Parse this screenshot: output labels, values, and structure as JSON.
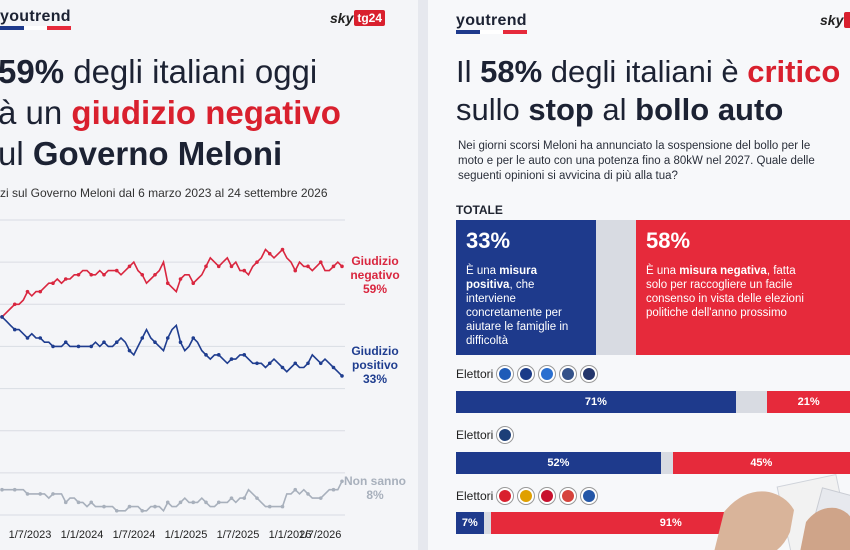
{
  "left": {
    "logo": "youtrend",
    "broadcaster": {
      "sky": "sky",
      "tg": "tg24"
    },
    "headline": {
      "l1_bold": "59%",
      "l1_rest": " degli italiani oggi",
      "l2_a": "à un ",
      "l2_red": "giudizio negativo",
      "l3_a": "ul ",
      "l3_bold": "Governo Meloni"
    },
    "subtitle": "zi sul Governo Meloni dal 6 marzo 2023 al 24 settembre 2026"
  },
  "chart_data": {
    "type": "line",
    "title": "",
    "xlabel": "",
    "ylabel": "",
    "x_ticks": [
      "1/7/2023",
      "1/1/2024",
      "1/7/2024",
      "1/1/2025",
      "1/7/2025",
      "1/1/2026",
      "1/7/2026"
    ],
    "series": [
      {
        "name_lines": [
          "Giudizio",
          "negativo"
        ],
        "final_label": "59%",
        "color": "#d9263f",
        "values": [
          47,
          48,
          49,
          50,
          50,
          51,
          53,
          52,
          53,
          53,
          54,
          55,
          55,
          56,
          55,
          56,
          56,
          57,
          57,
          58,
          58,
          57,
          57,
          58,
          57,
          58,
          58,
          58,
          57,
          58,
          59,
          60,
          58,
          57,
          55,
          56,
          57,
          58,
          60,
          55,
          54,
          53,
          56,
          57,
          57,
          55,
          56,
          57,
          59,
          61,
          60,
          59,
          60,
          61,
          59,
          60,
          58,
          58,
          57,
          59,
          60,
          61,
          63,
          62,
          61,
          62,
          63,
          61,
          60,
          58,
          60,
          59,
          59,
          58,
          59,
          60,
          58,
          58,
          59,
          60,
          59
        ]
      },
      {
        "name_lines": [
          "Giudizio",
          "positivo"
        ],
        "final_label": "33%",
        "color": "#1f3d8f",
        "values": [
          47,
          46,
          45,
          44,
          44,
          43,
          42,
          43,
          42,
          42,
          41,
          41,
          40,
          40,
          40,
          41,
          40,
          40,
          40,
          40,
          40,
          40,
          41,
          40,
          41,
          40,
          40,
          41,
          42,
          41,
          39,
          38,
          40,
          42,
          44,
          42,
          41,
          40,
          39,
          42,
          44,
          45,
          41,
          39,
          40,
          42,
          41,
          39,
          38,
          37,
          38,
          38,
          37,
          36,
          37,
          37,
          38,
          38,
          37,
          36,
          36,
          36,
          35,
          36,
          37,
          36,
          35,
          34,
          35,
          36,
          35,
          35,
          36,
          38,
          37,
          36,
          37,
          36,
          35,
          34,
          33
        ]
      },
      {
        "name_lines": [
          "Non sanno"
        ],
        "final_label": "8%",
        "color": "#a8b0bc",
        "values": [
          6,
          6,
          6,
          6,
          6,
          6,
          5,
          5,
          5,
          5,
          5,
          4,
          5,
          5,
          5,
          3,
          4,
          4,
          3,
          3,
          2,
          3,
          2,
          2,
          2,
          2,
          2,
          1,
          1,
          1,
          2,
          2,
          2,
          1,
          1,
          2,
          2,
          2,
          1,
          3,
          2,
          2,
          3,
          4,
          3,
          3,
          3,
          4,
          3,
          2,
          2,
          3,
          3,
          3,
          4,
          3,
          4,
          4,
          6,
          5,
          4,
          3,
          2,
          2,
          2,
          2,
          2,
          5,
          5,
          6,
          5,
          6,
          5,
          4,
          4,
          4,
          5,
          6,
          6,
          6,
          8
        ]
      }
    ],
    "ylim": [
      0,
      70
    ]
  },
  "right": {
    "logo": "youtrend",
    "broadcaster": {
      "sky": "sky"
    },
    "headline": {
      "l1_a": "Il ",
      "l1_bold": "58%",
      "l1_b": " degli italiani è ",
      "l1_red": "critico",
      "l2_a": "sullo ",
      "l2_bold": "stop",
      "l2_b": " al ",
      "l2_bold2": "bollo auto"
    },
    "question": "Nei giorni scorsi Meloni ha annunciato la sospensione del bollo per le moto e per le auto con una potenza fino a 80kW nel 2027. Quale delle seguenti opinioni si avvicina di più alla tua?",
    "totale_label": "TOTALE",
    "positive": {
      "pct": "33%",
      "text_a": "È una ",
      "text_bold": "misura positiva",
      "text_b": ", che interviene concretamente per aiutare le famiglie in difficoltà",
      "color": "#1e3a8c"
    },
    "negative": {
      "pct": "58%",
      "text_a": "È una ",
      "text_bold": "misura negativa",
      "text_b": ", fatta solo per raccogliere un facile consenso in vista delle elezioni politiche dell'anno prossimo",
      "color": "#e62a3b"
    },
    "groups": [
      {
        "label": "Elettori",
        "positive": 71,
        "negative": 21,
        "pos_text": "71%",
        "neg_text": "21%"
      },
      {
        "label": "Elettori",
        "positive": 52,
        "negative": 45,
        "pos_text": "52%",
        "neg_text": "45%"
      },
      {
        "label": "Elettori",
        "positive": 7,
        "negative": 91,
        "pos_text": "7%",
        "neg_text": "91%"
      }
    ]
  }
}
